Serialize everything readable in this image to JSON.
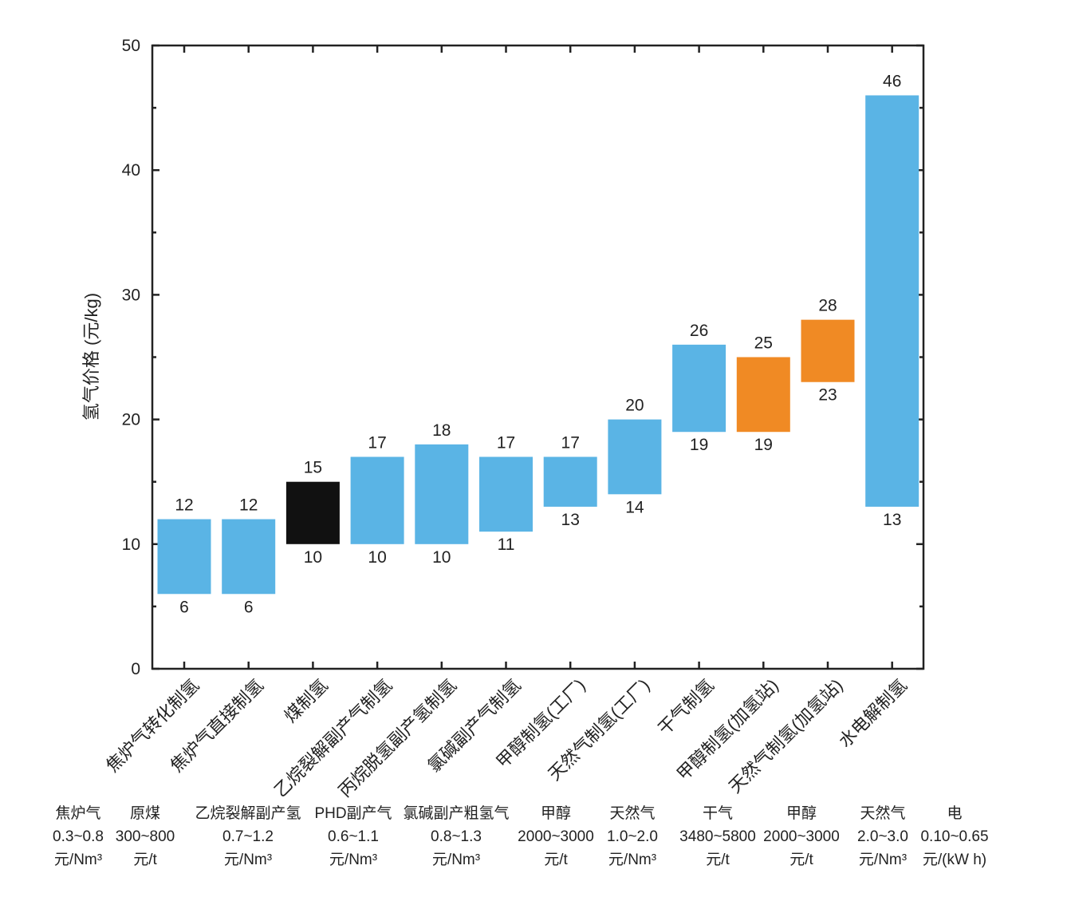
{
  "chart_data": {
    "type": "bar",
    "ylabel": "氢气价格 (元/kg)",
    "ylim": [
      0,
      50
    ],
    "yticks": [
      "0",
      "10",
      "20",
      "30",
      "40",
      "50"
    ],
    "grid": false,
    "categories": [
      "焦炉气转化制氢",
      "焦炉气直接制氢",
      "煤制氢",
      "乙烷裂解副产气制氢",
      "丙烷脱氢副产氢制氢",
      "氯碱副产气制氢",
      "甲醇制氢(工厂)",
      "天然气制氢(工厂)",
      "干气制氢",
      "甲醇制氢(加氢站)",
      "天然气制氢(加氢站)",
      "水电解制氢"
    ],
    "low": [
      6,
      6,
      10,
      10,
      10,
      11,
      13,
      14,
      19,
      19,
      23,
      13
    ],
    "high": [
      12,
      12,
      15,
      17,
      18,
      17,
      17,
      20,
      26,
      25,
      28,
      46
    ],
    "low_labels": [
      "6",
      "6",
      "10",
      "10",
      "10",
      "11",
      "13",
      "14",
      "19",
      "19",
      "23",
      "13"
    ],
    "high_labels": [
      "12",
      "12",
      "15",
      "17",
      "18",
      "17",
      "17",
      "20",
      "26",
      "25",
      "28",
      "46"
    ],
    "colors": [
      "#5ab4e5",
      "#5ab4e5",
      "#111111",
      "#5ab4e5",
      "#5ab4e5",
      "#5ab4e5",
      "#5ab4e5",
      "#5ab4e5",
      "#5ab4e5",
      "#f08a24",
      "#f08a24",
      "#5ab4e5"
    ]
  },
  "feedstock": [
    {
      "name": "焦炉气",
      "range": "0.3~0.8",
      "unit": "元/Nm³"
    },
    {
      "name": "原煤",
      "range": "300~800",
      "unit": "元/t"
    },
    {
      "name": "乙烷裂解副产氢",
      "range": "0.7~1.2",
      "unit": "元/Nm³"
    },
    {
      "name": "PHD副产气",
      "range": "0.6~1.1",
      "unit": "元/Nm³"
    },
    {
      "name": "氯碱副产粗氢气",
      "range": "0.8~1.3",
      "unit": "元/Nm³"
    },
    {
      "name": "甲醇",
      "range": "2000~3000",
      "unit": "元/t"
    },
    {
      "name": "天然气",
      "range": "1.0~2.0",
      "unit": "元/Nm³"
    },
    {
      "name": "干气",
      "range": "3480~5800",
      "unit": "元/t"
    },
    {
      "name": "甲醇",
      "range": "2000~3000",
      "unit": "元/t"
    },
    {
      "name": "天然气",
      "range": "2.0~3.0",
      "unit": "元/Nm³"
    },
    {
      "name": "电",
      "range": "0.10~0.65",
      "unit": "元/(kW h)"
    }
  ]
}
